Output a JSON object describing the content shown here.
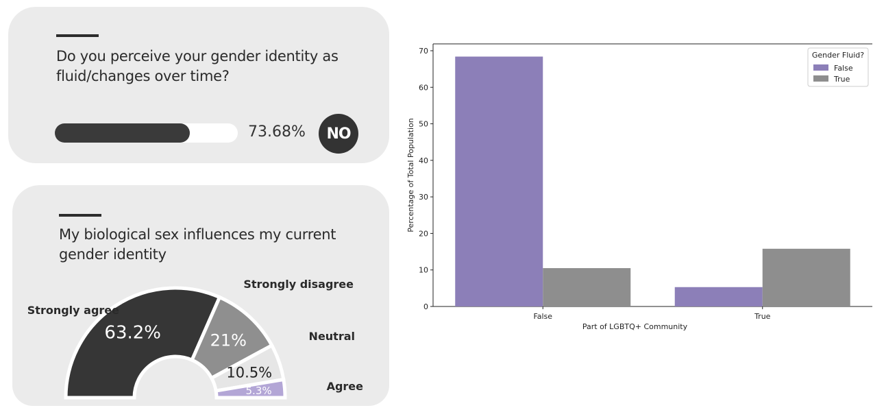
{
  "card1": {
    "question": "Do you perceive your gender identity as fluid/changes over time?",
    "progress_value": 73.68,
    "progress_label": "73.68%",
    "badge": "NO"
  },
  "card2": {
    "question": "My biological sex influences my current gender identity"
  },
  "colors": {
    "dark": "#363636",
    "mid_gray": "#8f8f8f",
    "light_gray": "#e6e6e6",
    "lavender": "#b3a6d6",
    "purple": "#8c7fb8",
    "gray_bar": "#8e8e8e"
  },
  "chart_data": [
    {
      "type": "pie",
      "subtype": "half-donut",
      "title": "",
      "slices": [
        {
          "name": "Strongly agree",
          "value": 63.2,
          "label": "63.2%"
        },
        {
          "name": "Strongly disagree",
          "value": 21,
          "label": "21%"
        },
        {
          "name": "Neutral",
          "value": 10.5,
          "label": "10.5%"
        },
        {
          "name": "Agree",
          "value": 5.3,
          "label": "5.3%"
        }
      ]
    },
    {
      "type": "bar",
      "title": "",
      "categories": [
        "False",
        "True"
      ],
      "series": [
        {
          "name": "False",
          "values": [
            68.4,
            5.3
          ]
        },
        {
          "name": "True",
          "values": [
            10.5,
            15.8
          ]
        }
      ],
      "xlabel": "Part of LGBTQ+ Community",
      "ylabel": "Percentage of Total Population",
      "ylim": [
        0,
        70
      ],
      "yticks": [
        0,
        10,
        20,
        30,
        40,
        50,
        60,
        70
      ],
      "legend_title": "Gender Fluid?",
      "legend_position": "top-right",
      "grid": false
    }
  ]
}
